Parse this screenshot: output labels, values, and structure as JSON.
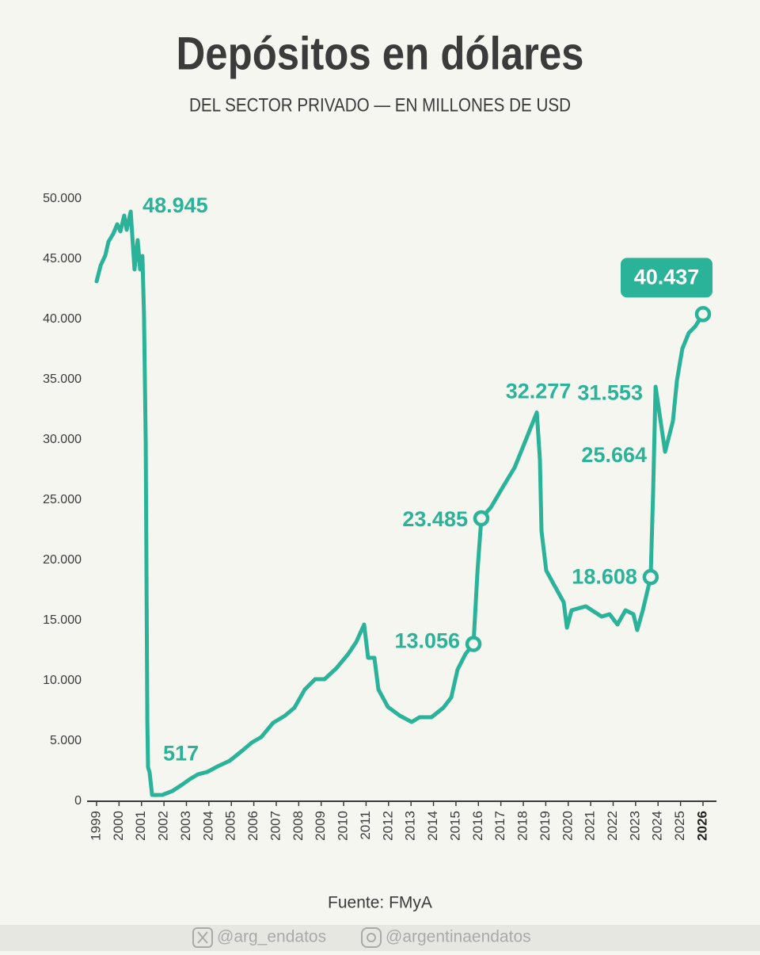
{
  "chart_data": {
    "type": "line",
    "title": "Depósitos en dólares",
    "subtitle": "DEL SECTOR PRIVADO — EN MILLONES DE USD",
    "source": "Fuente: FMyA",
    "footer": [
      "@arg_endatos",
      "@argentinaendatos"
    ],
    "x": [
      1999.0,
      1999.18,
      1999.39,
      1999.53,
      1999.74,
      1999.92,
      2000.06,
      2000.23,
      2000.34,
      2000.52,
      2000.69,
      2000.83,
      2000.94,
      2001.04,
      2001.11,
      2001.19,
      2001.26,
      2001.29,
      2001.36,
      2001.47,
      2001.61,
      2001.93,
      2002.38,
      2002.81,
      2003.16,
      2003.51,
      2003.93,
      2004.39,
      2004.92,
      2005.45,
      2005.91,
      2006.33,
      2006.86,
      2007.39,
      2007.81,
      2008.27,
      2008.73,
      2009.15,
      2009.68,
      2010.21,
      2010.56,
      2010.91,
      2011.09,
      2011.37,
      2011.55,
      2011.97,
      2012.5,
      2013.03,
      2013.38,
      2013.91,
      2014.44,
      2014.79,
      2015.07,
      2015.43,
      2015.78,
      2015.96,
      2016.13,
      2016.56,
      2017.08,
      2017.61,
      2018.04,
      2018.6,
      2018.74,
      2018.81,
      2019.02,
      2019.37,
      2019.8,
      2019.94,
      2020.15,
      2020.78,
      2021.49,
      2021.84,
      2022.19,
      2022.55,
      2022.9,
      2023.07,
      2023.32,
      2023.67,
      2023.78,
      2023.89,
      2024.31,
      2024.66,
      2024.84,
      2025.08,
      2025.37,
      2025.65,
      2026.0
    ],
    "series": [
      {
        "name": "Depósitos",
        "color": "#2bb39a",
        "values": [
          43158,
          44474,
          45329,
          46447,
          47105,
          47895,
          47303,
          48618,
          47434,
          48945,
          44145,
          46579,
          44145,
          45263,
          40395,
          29671,
          6645,
          2829,
          2368,
          526,
          517,
          526,
          855,
          1382,
          1842,
          2237,
          2434,
          2895,
          3355,
          4145,
          4868,
          5329,
          6513,
          7105,
          7763,
          9276,
          10132,
          10132,
          11053,
          12237,
          13224,
          14671,
          11908,
          11908,
          9276,
          7829,
          7105,
          6579,
          6974,
          6974,
          7763,
          8618,
          10921,
          12237,
          13056,
          19145,
          23485,
          24408,
          26053,
          27697,
          29671,
          32277,
          28355,
          22434,
          19145,
          17961,
          16513,
          14408,
          15855,
          16184,
          15329,
          15526,
          14671,
          15855,
          15526,
          14211,
          15855,
          18608,
          25664,
          34408,
          29013,
          31553,
          34934,
          37566,
          38882,
          39408,
          40437
        ]
      }
    ],
    "annotations": [
      {
        "label": "48.945",
        "x": 2000.52,
        "value": 48945,
        "marker": false
      },
      {
        "label": "517",
        "x": 2001.61,
        "value": 517,
        "marker": false
      },
      {
        "label": "13.056",
        "x": 2015.78,
        "value": 13056,
        "marker": true
      },
      {
        "label": "23.485",
        "x": 2016.13,
        "value": 23485,
        "marker": true
      },
      {
        "label": "32.277",
        "x": 2018.6,
        "value": 32277,
        "marker": false
      },
      {
        "label": "31.553",
        "x": 2024.66,
        "value": 31553,
        "marker": false
      },
      {
        "label": "25.664",
        "x": 2023.78,
        "value": 25664,
        "marker": false
      },
      {
        "label": "18.608",
        "x": 2023.67,
        "value": 18608,
        "marker": true
      },
      {
        "label": "40.437",
        "x": 2026.0,
        "value": 40437,
        "marker": true,
        "boxed": true
      }
    ],
    "xlim": [
      1999,
      2026
    ],
    "xticks": [
      1999,
      2000,
      2001,
      2002,
      2003,
      2004,
      2005,
      2006,
      2007,
      2008,
      2009,
      2010,
      2011,
      2012,
      2013,
      2014,
      2015,
      2016,
      2017,
      2018,
      2019,
      2020,
      2021,
      2022,
      2023,
      2024,
      2025,
      2026
    ],
    "ylim": [
      0,
      50000
    ],
    "yticks": [
      0,
      {
        "value": 5000,
        "label": "5.000"
      },
      {
        "value": 10000,
        "label": "10.000"
      },
      {
        "value": 15000,
        "label": "15.000"
      },
      {
        "value": 20000,
        "label": "20.000"
      },
      {
        "value": 25000,
        "label": "25.000"
      },
      {
        "value": 30000,
        "label": "30.000"
      },
      {
        "value": 35000,
        "label": "35.000"
      },
      {
        "value": 40000,
        "label": "40.000"
      },
      {
        "value": 45000,
        "label": "45.000"
      },
      {
        "value": 50000,
        "label": "50.000"
      }
    ],
    "grid": false
  }
}
